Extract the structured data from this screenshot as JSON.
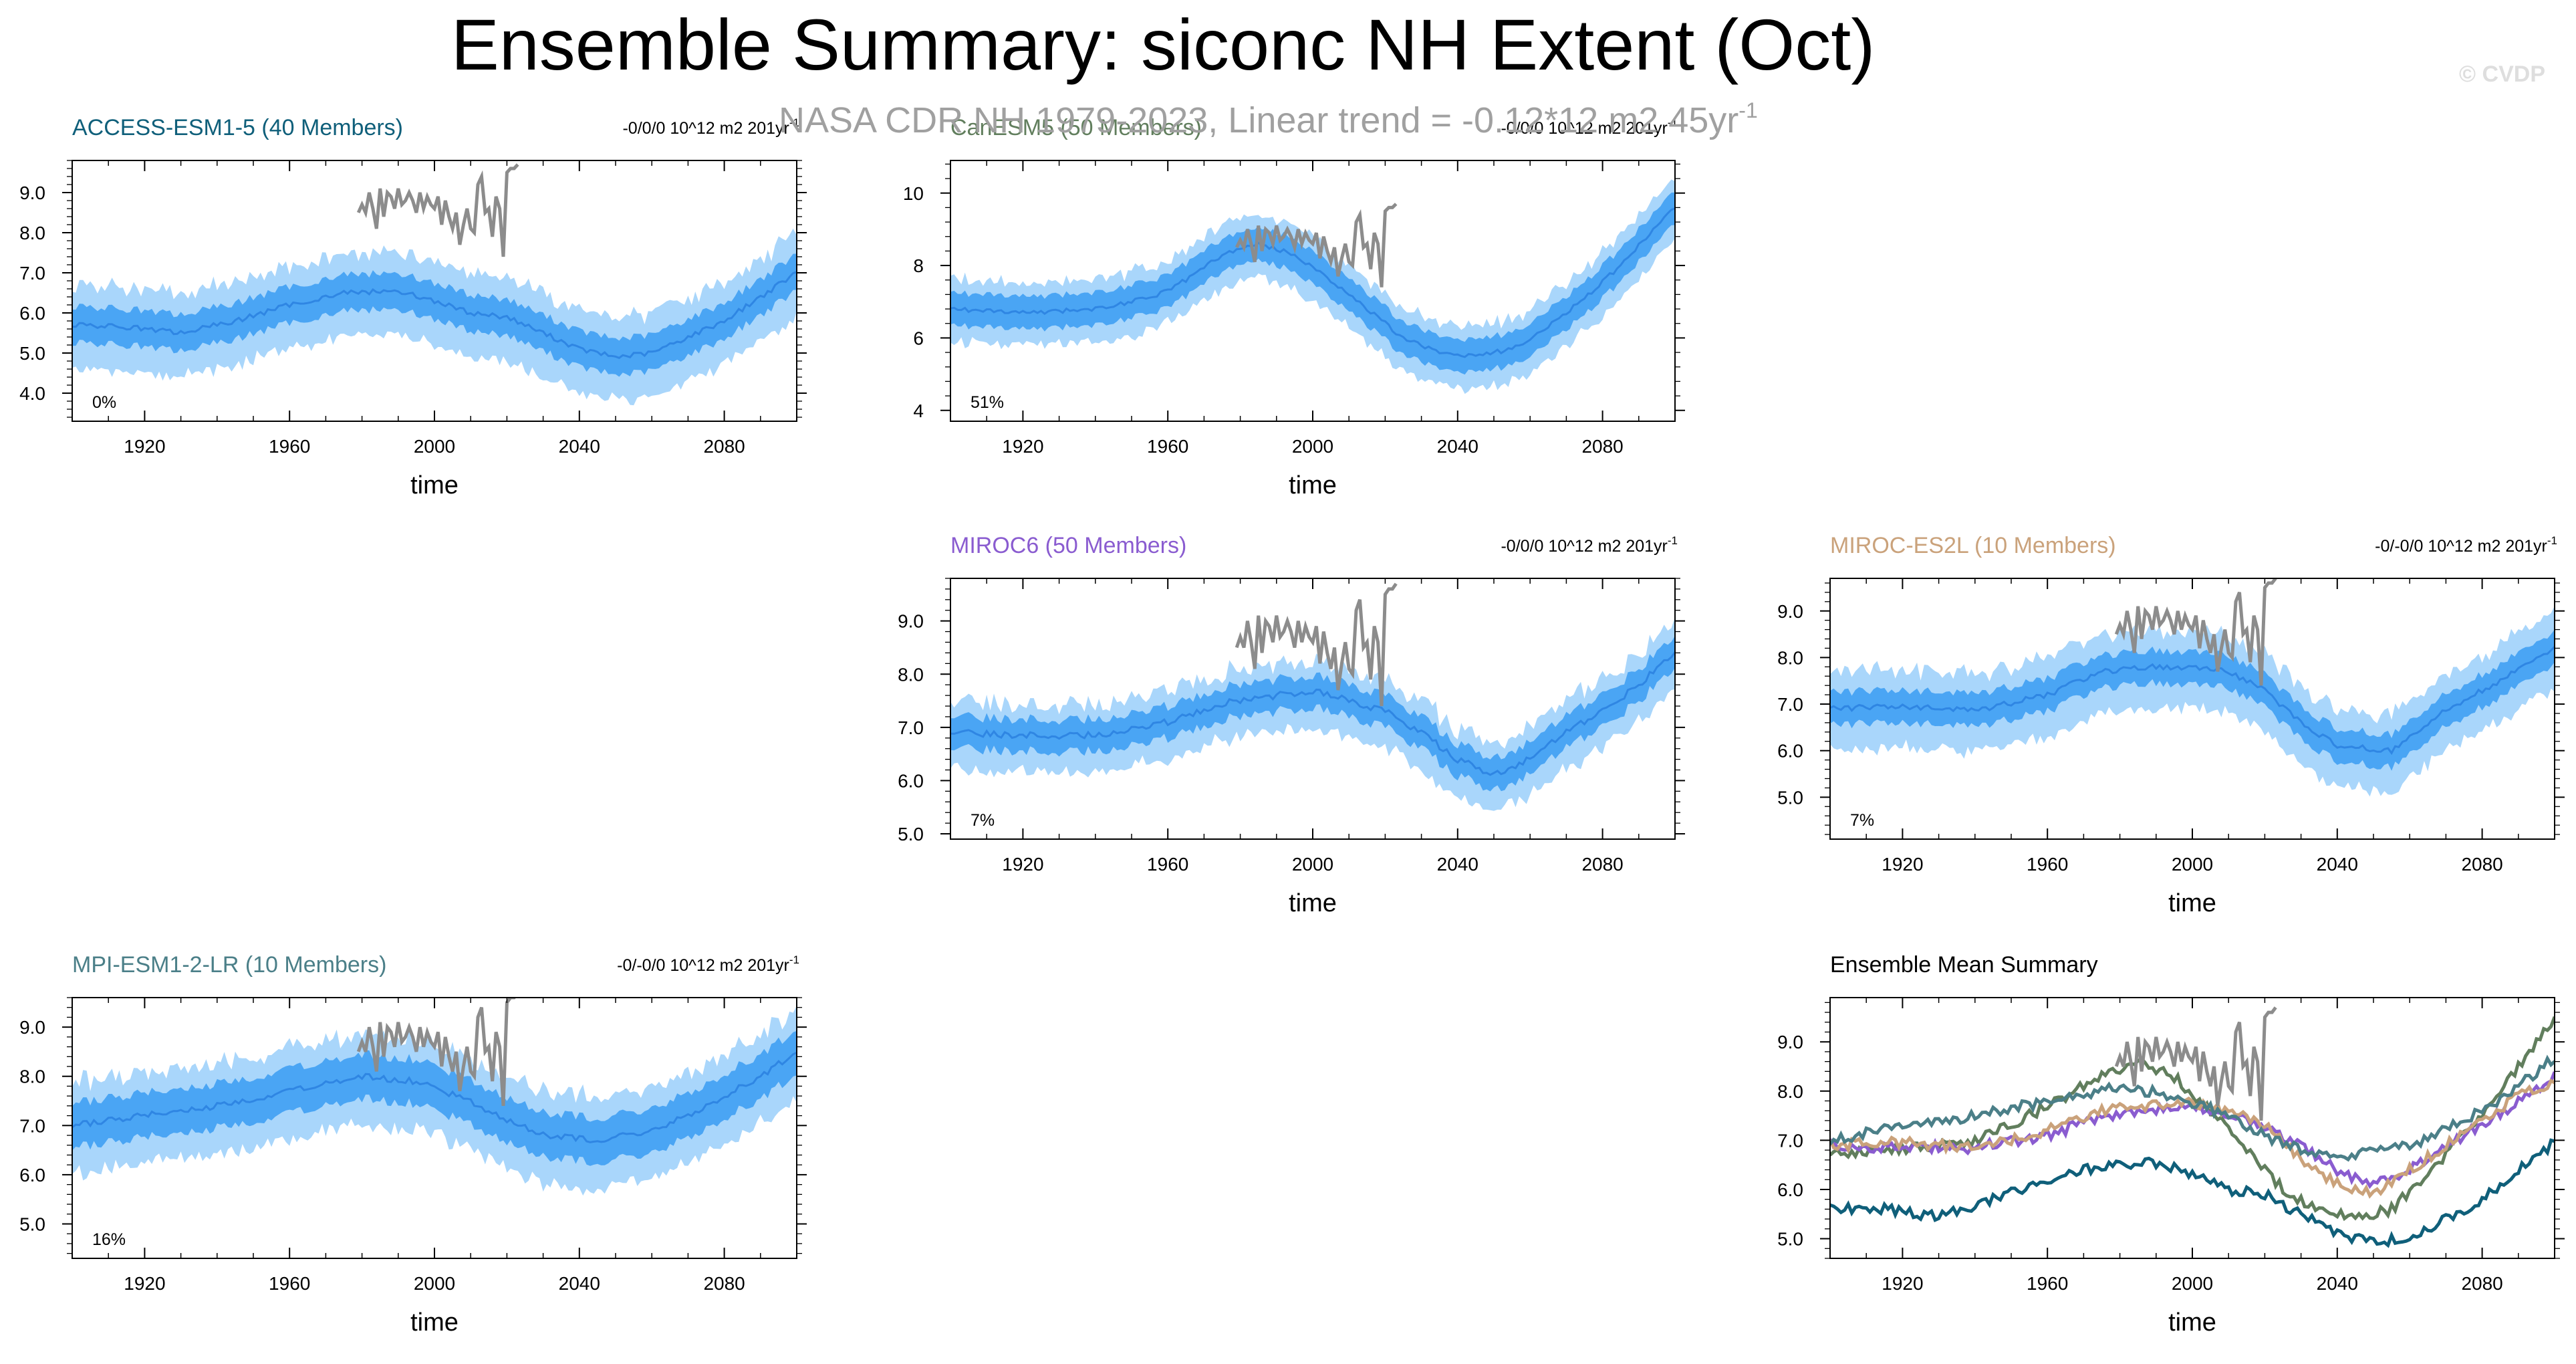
{
  "title": "Ensemble Summary: siconc NH Extent (Oct)",
  "watermark": "© CVDP",
  "observation_label": "NASA CDR NH 1979-2023, Linear trend = -0.12*12 m2 45yr",
  "observation_label_sup": "-1",
  "colors": {
    "band_outer": "#a9d6fb",
    "band_inner": "#4aa5f4",
    "ens_mean": "#2f86e3",
    "obs": "#8c8c8c",
    "access": "#0f5f7a",
    "canesm": "#617e5d",
    "miroc6": "#8a5cd0",
    "mirocesl": "#caa27b",
    "mpi": "#4b7f88"
  },
  "chart_data": [
    {
      "id": "access",
      "type": "line",
      "title": "ACCESS-ESM1-5 (40 Members)",
      "trend_label": "-0/0/0 10^12 m2 201yr",
      "trend_sup": "-1",
      "percent_label": "0%",
      "xlabel": "time",
      "xlim": [
        1900,
        2100
      ],
      "xticks": [
        "1920",
        "1960",
        "2000",
        "2040",
        "2080"
      ],
      "ylim": [
        3.3,
        9.8
      ],
      "yticks": [
        "4.0",
        "5.0",
        "6.0",
        "7.0",
        "8.0",
        "9.0"
      ],
      "mean_curve": [
        [
          1900,
          5.7
        ],
        [
          1915,
          5.65
        ],
        [
          1930,
          5.5
        ],
        [
          1945,
          5.8
        ],
        [
          1960,
          6.2
        ],
        [
          1975,
          6.5
        ],
        [
          1990,
          6.55
        ],
        [
          2000,
          6.3
        ],
        [
          2010,
          6.0
        ],
        [
          2020,
          5.9
        ],
        [
          2030,
          5.5
        ],
        [
          2040,
          5.1
        ],
        [
          2050,
          4.9
        ],
        [
          2060,
          5.0
        ],
        [
          2070,
          5.4
        ],
        [
          2080,
          5.8
        ],
        [
          2090,
          6.4
        ],
        [
          2100,
          7.0
        ]
      ],
      "spread": 0.45,
      "outer_spread": 1.0
    },
    {
      "id": "canesm",
      "type": "line",
      "title": "CanESM5 (50 Members)",
      "trend_label": "-0/0/0 10^12 m2 201yr",
      "trend_sup": "-1",
      "percent_label": "51%",
      "xlabel": "time",
      "xlim": [
        1900,
        2100
      ],
      "xticks": [
        "1920",
        "1960",
        "2000",
        "2040",
        "2080"
      ],
      "ylim": [
        3.7,
        10.9
      ],
      "yticks": [
        "4",
        "6",
        "8",
        "10"
      ],
      "mean_curve": [
        [
          1900,
          6.8
        ],
        [
          1920,
          6.7
        ],
        [
          1940,
          6.8
        ],
        [
          1955,
          7.1
        ],
        [
          1965,
          7.6
        ],
        [
          1975,
          8.3
        ],
        [
          1985,
          8.6
        ],
        [
          1995,
          8.3
        ],
        [
          2005,
          7.6
        ],
        [
          2015,
          6.8
        ],
        [
          2025,
          6.0
        ],
        [
          2035,
          5.6
        ],
        [
          2045,
          5.5
        ],
        [
          2055,
          5.7
        ],
        [
          2065,
          6.3
        ],
        [
          2075,
          7.1
        ],
        [
          2085,
          8.0
        ],
        [
          2095,
          9.1
        ],
        [
          2100,
          9.6
        ]
      ],
      "spread": 0.45,
      "outer_spread": 0.85
    },
    {
      "id": "miroc6",
      "type": "line",
      "title": "MIROC6 (50 Members)",
      "trend_label": "-0/0/0 10^12 m2 201yr",
      "trend_sup": "-1",
      "percent_label": "7%",
      "xlabel": "time",
      "xlim": [
        1900,
        2100
      ],
      "xticks": [
        "1920",
        "1960",
        "2000",
        "2040",
        "2080"
      ],
      "ylim": [
        4.9,
        9.8
      ],
      "yticks": [
        "5.0",
        "6.0",
        "7.0",
        "8.0",
        "9.0"
      ],
      "mean_curve": [
        [
          1900,
          6.9
        ],
        [
          1920,
          6.85
        ],
        [
          1940,
          6.85
        ],
        [
          1960,
          7.1
        ],
        [
          1975,
          7.45
        ],
        [
          1990,
          7.6
        ],
        [
          2000,
          7.7
        ],
        [
          2010,
          7.5
        ],
        [
          2020,
          7.3
        ],
        [
          2030,
          6.9
        ],
        [
          2040,
          6.4
        ],
        [
          2050,
          6.1
        ],
        [
          2060,
          6.4
        ],
        [
          2070,
          6.9
        ],
        [
          2080,
          7.3
        ],
        [
          2090,
          7.8
        ],
        [
          2100,
          8.4
        ]
      ],
      "spread": 0.3,
      "outer_spread": 0.6
    },
    {
      "id": "mirocesl",
      "type": "line",
      "title": "MIROC-ES2L (10 Members)",
      "trend_label": "-0/-0/0 10^12 m2 201yr",
      "trend_sup": "-1",
      "percent_label": "7%",
      "xlabel": "time",
      "xlim": [
        1900,
        2100
      ],
      "xticks": [
        "1920",
        "1960",
        "2000",
        "2040",
        "2080"
      ],
      "ylim": [
        4.1,
        9.7
      ],
      "yticks": [
        "5.0",
        "6.0",
        "7.0",
        "8.0",
        "9.0"
      ],
      "mean_curve": [
        [
          1900,
          6.9
        ],
        [
          1920,
          6.95
        ],
        [
          1940,
          6.85
        ],
        [
          1960,
          7.2
        ],
        [
          1975,
          7.7
        ],
        [
          1990,
          7.8
        ],
        [
          2000,
          7.8
        ],
        [
          2010,
          7.7
        ],
        [
          2020,
          7.3
        ],
        [
          2030,
          6.6
        ],
        [
          2040,
          6.1
        ],
        [
          2055,
          6.0
        ],
        [
          2065,
          6.6
        ],
        [
          2075,
          7.1
        ],
        [
          2085,
          7.5
        ],
        [
          2095,
          8.0
        ],
        [
          2100,
          8.2
        ]
      ],
      "spread": 0.35,
      "outer_spread": 0.8
    },
    {
      "id": "mpi",
      "type": "line",
      "title": "MPI-ESM1-2-LR (10 Members)",
      "trend_label": "-0/-0/0 10^12 m2 201yr",
      "trend_sup": "-1",
      "percent_label": "16%",
      "xlabel": "time",
      "xlim": [
        1900,
        2100
      ],
      "xticks": [
        "1920",
        "1960",
        "2000",
        "2040",
        "2080"
      ],
      "ylim": [
        4.3,
        9.6
      ],
      "yticks": [
        "5.0",
        "6.0",
        "7.0",
        "8.0",
        "9.0"
      ],
      "mean_curve": [
        [
          1900,
          7.0
        ],
        [
          1920,
          7.2
        ],
        [
          1940,
          7.4
        ],
        [
          1960,
          7.7
        ],
        [
          1980,
          8.0
        ],
        [
          1995,
          7.9
        ],
        [
          2010,
          7.5
        ],
        [
          2020,
          7.1
        ],
        [
          2030,
          6.8
        ],
        [
          2045,
          6.7
        ],
        [
          2060,
          6.9
        ],
        [
          2070,
          7.2
        ],
        [
          2080,
          7.6
        ],
        [
          2090,
          8.0
        ],
        [
          2100,
          8.5
        ]
      ],
      "spread": 0.45,
      "outer_spread": 0.9
    },
    {
      "id": "summary",
      "type": "line",
      "title": "Ensemble Mean Summary",
      "xlabel": "time",
      "xlim": [
        1900,
        2100
      ],
      "xticks": [
        "1920",
        "1960",
        "2000",
        "2040",
        "2080"
      ],
      "ylim": [
        4.6,
        9.9
      ],
      "yticks": [
        "5.0",
        "6.0",
        "7.0",
        "8.0",
        "9.0"
      ],
      "series": [
        {
          "name": "ACCESS-ESM1-5",
          "color": "#0f5f7a",
          "points": [
            [
              1900,
              5.6
            ],
            [
              1915,
              5.6
            ],
            [
              1930,
              5.45
            ],
            [
              1945,
              5.8
            ],
            [
              1960,
              6.2
            ],
            [
              1975,
              6.5
            ],
            [
              1990,
              6.55
            ],
            [
              2000,
              6.3
            ],
            [
              2010,
              6.0
            ],
            [
              2020,
              5.9
            ],
            [
              2030,
              5.5
            ],
            [
              2040,
              5.1
            ],
            [
              2050,
              4.95
            ],
            [
              2060,
              5.0
            ],
            [
              2070,
              5.4
            ],
            [
              2080,
              5.8
            ],
            [
              2090,
              6.4
            ],
            [
              2100,
              6.95
            ]
          ]
        },
        {
          "name": "CanESM5",
          "color": "#617e5d",
          "points": [
            [
              1900,
              6.7
            ],
            [
              1920,
              6.8
            ],
            [
              1940,
              7.0
            ],
            [
              1955,
              7.5
            ],
            [
              1965,
              7.9
            ],
            [
              1975,
              8.3
            ],
            [
              1985,
              8.6
            ],
            [
              1995,
              8.3
            ],
            [
              2005,
              7.6
            ],
            [
              2015,
              6.8
            ],
            [
              2025,
              6.0
            ],
            [
              2035,
              5.6
            ],
            [
              2045,
              5.4
            ],
            [
              2055,
              5.6
            ],
            [
              2065,
              6.3
            ],
            [
              2075,
              7.1
            ],
            [
              2085,
              8.0
            ],
            [
              2095,
              9.0
            ],
            [
              2100,
              9.5
            ]
          ]
        },
        {
          "name": "MIROC6",
          "color": "#8a5cd0",
          "points": [
            [
              1900,
              6.9
            ],
            [
              1920,
              6.85
            ],
            [
              1940,
              6.85
            ],
            [
              1960,
              7.1
            ],
            [
              1975,
              7.45
            ],
            [
              1990,
              7.6
            ],
            [
              2000,
              7.7
            ],
            [
              2010,
              7.5
            ],
            [
              2020,
              7.3
            ],
            [
              2030,
              6.9
            ],
            [
              2040,
              6.4
            ],
            [
              2050,
              6.1
            ],
            [
              2060,
              6.4
            ],
            [
              2070,
              6.9
            ],
            [
              2080,
              7.3
            ],
            [
              2090,
              7.8
            ],
            [
              2100,
              8.3
            ]
          ]
        },
        {
          "name": "MIROC-ES2L",
          "color": "#caa27b",
          "points": [
            [
              1900,
              6.9
            ],
            [
              1920,
              6.95
            ],
            [
              1940,
              6.85
            ],
            [
              1960,
              7.2
            ],
            [
              1975,
              7.6
            ],
            [
              1990,
              7.7
            ],
            [
              2000,
              7.75
            ],
            [
              2010,
              7.6
            ],
            [
              2020,
              7.3
            ],
            [
              2030,
              6.6
            ],
            [
              2040,
              6.1
            ],
            [
              2050,
              5.9
            ],
            [
              2060,
              6.4
            ],
            [
              2070,
              6.9
            ],
            [
              2080,
              7.4
            ],
            [
              2090,
              7.9
            ],
            [
              2100,
              8.2
            ]
          ]
        },
        {
          "name": "MPI-ESM1-2-LR",
          "color": "#4b7f88",
          "points": [
            [
              1900,
              7.0
            ],
            [
              1920,
              7.3
            ],
            [
              1940,
              7.5
            ],
            [
              1960,
              7.8
            ],
            [
              1980,
              8.1
            ],
            [
              1995,
              7.9
            ],
            [
              2010,
              7.5
            ],
            [
              2020,
              7.1
            ],
            [
              2030,
              6.8
            ],
            [
              2045,
              6.7
            ],
            [
              2060,
              6.9
            ],
            [
              2070,
              7.2
            ],
            [
              2080,
              7.6
            ],
            [
              2090,
              8.1
            ],
            [
              2100,
              8.7
            ]
          ]
        }
      ]
    }
  ],
  "observations": {
    "name": "NASA CDR NH",
    "years": [
      1979,
      1980,
      1981,
      1982,
      1983,
      1984,
      1985,
      1986,
      1987,
      1988,
      1989,
      1990,
      1991,
      1992,
      1993,
      1994,
      1995,
      1996,
      1997,
      1998,
      1999,
      2000,
      2001,
      2002,
      2003,
      2004,
      2005,
      2006,
      2007,
      2008,
      2009,
      2010,
      2011,
      2012,
      2013,
      2014,
      2015,
      2016,
      2017,
      2018,
      2019,
      2020,
      2021,
      2022,
      2023
    ],
    "values": [
      8.5,
      8.7,
      8.5,
      9.0,
      8.6,
      8.1,
      9.1,
      8.4,
      9.0,
      8.9,
      8.6,
      9.1,
      8.7,
      8.8,
      9.0,
      8.8,
      8.5,
      9.0,
      8.6,
      8.9,
      8.7,
      8.6,
      8.9,
      8.2,
      8.8,
      8.4,
      8.1,
      8.5,
      7.7,
      8.2,
      8.6,
      8.1,
      8.0,
      9.2,
      9.4,
      8.5,
      8.6,
      7.9,
      8.9,
      8.6,
      7.4,
      9.5,
      9.6,
      9.6,
      9.7
    ]
  }
}
